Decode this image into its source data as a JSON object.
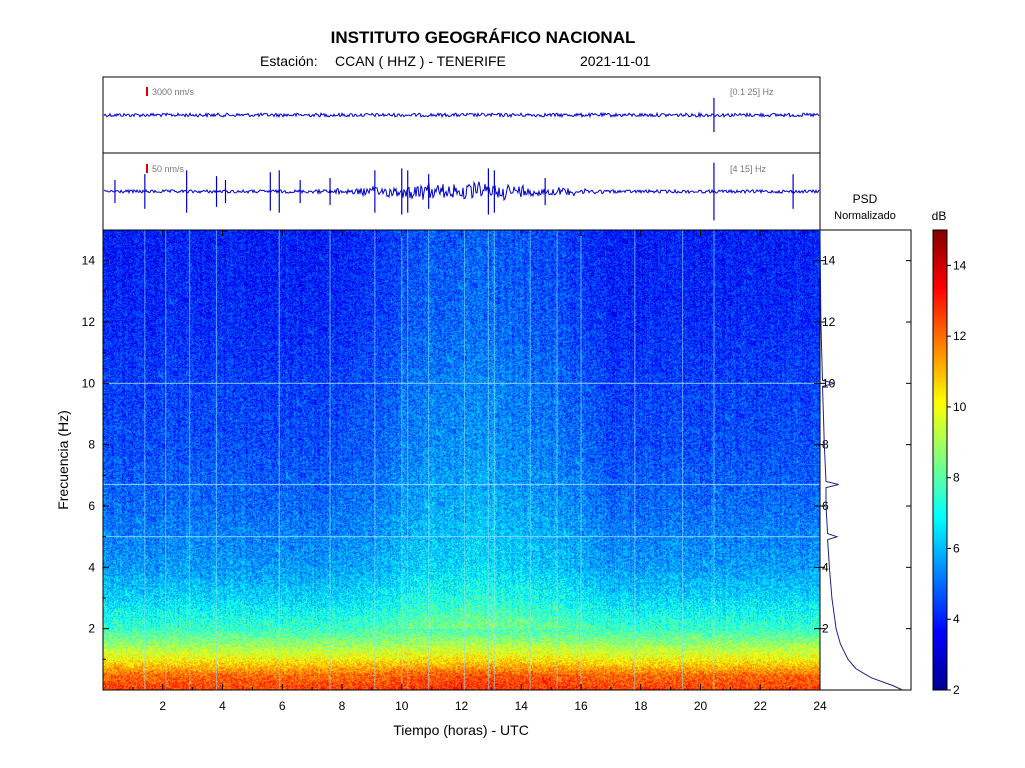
{
  "header": {
    "institution": "INSTITUTO GEOGRÁFICO NACIONAL",
    "station_label": "Estación:",
    "station": "CCAN ( HHZ ) - TENERIFE",
    "date": "2021-11-01"
  },
  "colors": {
    "trace": "#0000cc",
    "scale_mark": "#dd0000",
    "psd_line": "#1a237e",
    "hline": "#9fdfff"
  },
  "chart_data": [
    {
      "type": "line",
      "panel": "seismogram-top",
      "scale_label": "3000 nm/s",
      "filter_label": "[0.1 25] Hz",
      "x_range": [
        0,
        24
      ],
      "spikes": [
        {
          "t": 20.45,
          "amp": 0.45
        }
      ]
    },
    {
      "type": "line",
      "panel": "seismogram-bottom",
      "scale_label": "50 nm/s",
      "filter_label": "[4 15] Hz",
      "x_range": [
        0,
        24
      ],
      "spikes": [
        {
          "t": 0.4,
          "amp": 0.3
        },
        {
          "t": 1.4,
          "amp": 0.45
        },
        {
          "t": 2.8,
          "amp": 0.55
        },
        {
          "t": 3.8,
          "amp": 0.4
        },
        {
          "t": 4.1,
          "amp": 0.3
        },
        {
          "t": 5.6,
          "amp": 0.5
        },
        {
          "t": 5.9,
          "amp": 0.55
        },
        {
          "t": 6.6,
          "amp": 0.3
        },
        {
          "t": 7.6,
          "amp": 0.35
        },
        {
          "t": 9.1,
          "amp": 0.55
        },
        {
          "t": 10.0,
          "amp": 0.6
        },
        {
          "t": 10.2,
          "amp": 0.55
        },
        {
          "t": 10.9,
          "amp": 0.45
        },
        {
          "t": 12.9,
          "amp": 0.6
        },
        {
          "t": 13.1,
          "amp": 0.55
        },
        {
          "t": 14.8,
          "amp": 0.35
        },
        {
          "t": 20.45,
          "amp": 0.75
        },
        {
          "t": 23.1,
          "amp": 0.45
        }
      ],
      "noise_bursts": [
        {
          "from": 7.0,
          "to": 17.0,
          "amp": 0.18
        }
      ]
    },
    {
      "type": "heatmap",
      "panel": "spectrogram",
      "xlabel": "Tiempo (horas) - UTC",
      "ylabel": "Frecuencia  (Hz)",
      "xlim": [
        0,
        24
      ],
      "ylim": [
        0,
        15
      ],
      "xticks": [
        2,
        4,
        6,
        8,
        10,
        12,
        14,
        16,
        18,
        20,
        22,
        24
      ],
      "yticks": [
        2,
        4,
        6,
        8,
        10,
        12,
        14
      ],
      "horizontal_lines_hz": [
        10.0,
        6.7,
        5.0
      ],
      "vertical_events_h": [
        1.4,
        2.1,
        2.9,
        3.8,
        5.9,
        7.6,
        9.1,
        10.0,
        10.2,
        10.9,
        12.1,
        12.9,
        13.1,
        14.3,
        15.2,
        16.0,
        17.8,
        19.4,
        20.45
      ],
      "band_profile": [
        {
          "f": 0.0,
          "db": 12.6
        },
        {
          "f": 0.5,
          "db": 12.0
        },
        {
          "f": 1.0,
          "db": 10.2
        },
        {
          "f": 1.5,
          "db": 8.8
        },
        {
          "f": 2.0,
          "db": 7.6
        },
        {
          "f": 3.0,
          "db": 6.4
        },
        {
          "f": 4.0,
          "db": 5.6
        },
        {
          "f": 6.0,
          "db": 5.0
        },
        {
          "f": 8.0,
          "db": 4.6
        },
        {
          "f": 10.0,
          "db": 4.4
        },
        {
          "f": 12.0,
          "db": 4.1
        },
        {
          "f": 15.0,
          "db": 3.9
        }
      ]
    },
    {
      "type": "line",
      "panel": "psd",
      "title_line1": "PSD",
      "title_line2": "Normalizado",
      "ylim": [
        0,
        15
      ],
      "points": [
        {
          "f": 0.0,
          "v": 0.97
        },
        {
          "f": 0.15,
          "v": 0.85
        },
        {
          "f": 0.4,
          "v": 0.6
        },
        {
          "f": 0.7,
          "v": 0.42
        },
        {
          "f": 1.0,
          "v": 0.33
        },
        {
          "f": 1.5,
          "v": 0.24
        },
        {
          "f": 2.0,
          "v": 0.19
        },
        {
          "f": 3.0,
          "v": 0.14
        },
        {
          "f": 4.0,
          "v": 0.11
        },
        {
          "f": 4.9,
          "v": 0.09
        },
        {
          "f": 5.0,
          "v": 0.2
        },
        {
          "f": 5.1,
          "v": 0.09
        },
        {
          "f": 6.0,
          "v": 0.07
        },
        {
          "f": 6.6,
          "v": 0.07
        },
        {
          "f": 6.7,
          "v": 0.22
        },
        {
          "f": 6.8,
          "v": 0.07
        },
        {
          "f": 8.0,
          "v": 0.05
        },
        {
          "f": 9.0,
          "v": 0.04
        },
        {
          "f": 9.9,
          "v": 0.03
        },
        {
          "f": 10.0,
          "v": 0.17
        },
        {
          "f": 10.1,
          "v": 0.03
        },
        {
          "f": 11.0,
          "v": 0.02
        },
        {
          "f": 12.0,
          "v": 0.01
        },
        {
          "f": 15.0,
          "v": 0.0
        }
      ]
    },
    {
      "type": "heatmap",
      "panel": "colorbar",
      "label": "dB",
      "range": [
        2,
        15
      ],
      "ticks": [
        2,
        4,
        6,
        8,
        10,
        12,
        14
      ]
    }
  ]
}
